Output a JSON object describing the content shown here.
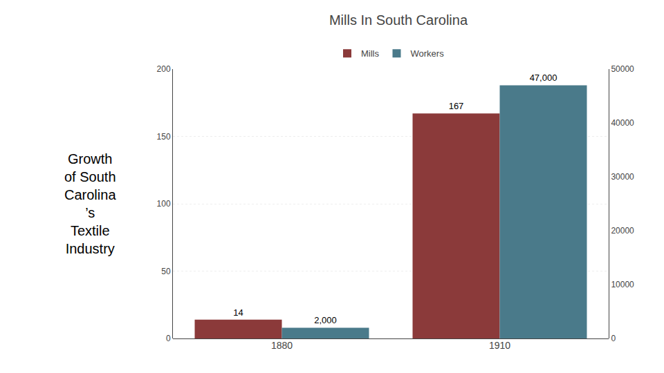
{
  "chart_data": {
    "type": "bar",
    "title": "Mills In South Carolina",
    "annotations": [
      "Growth\nof South\nCarolina\n’s\nTextile\nIndustry"
    ],
    "categories": [
      "1880",
      "1910"
    ],
    "series": [
      {
        "name": "Mills",
        "color": "#8B3A3A",
        "values": [
          14,
          167
        ]
      },
      {
        "name": "Workers",
        "color": "#4A7A8A",
        "values": [
          2000,
          47000
        ],
        "value_labels": [
          "2,000",
          "47,000"
        ],
        "axis": "y2"
      }
    ],
    "ylim": [
      0,
      200
    ],
    "yticks": [
      0,
      50,
      100,
      150,
      200
    ],
    "y2lim": [
      0,
      50000
    ],
    "y2ticks": [
      0,
      10000,
      20000,
      30000,
      40000,
      50000
    ],
    "data_labels": true,
    "grid": true,
    "legend": "top"
  }
}
